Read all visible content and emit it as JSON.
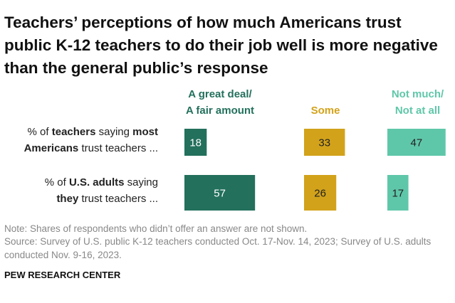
{
  "chart_data": {
    "type": "bar",
    "title": "Teachers’ perceptions of how much Americans trust public K-12 teachers to do their job well is more negative than the general public’s response",
    "categories": [
      [
        [
          {
            "text": "% of "
          },
          {
            "text": "teachers",
            "bold": true
          },
          {
            "text": " saying "
          },
          {
            "text": "most",
            "bold": true
          }
        ],
        [
          {
            "text": "Americans",
            "bold": true
          },
          {
            "text": " trust teachers ..."
          }
        ]
      ],
      [
        [
          {
            "text": "% of "
          },
          {
            "text": "U.S. adults",
            "bold": true
          },
          {
            "text": " saying"
          }
        ],
        [
          {
            "text": "they",
            "bold": true
          },
          {
            "text": " trust teachers ..."
          }
        ]
      ]
    ],
    "series": [
      {
        "name": [
          "A great deal/",
          "A fair amount"
        ],
        "color": "#23705c",
        "values": [
          18,
          57
        ]
      },
      {
        "name": [
          "Some"
        ],
        "color": "#d2a21a",
        "values": [
          33,
          26
        ]
      },
      {
        "name": [
          "Not much/",
          "Not at all"
        ],
        "color": "#5fc7a9",
        "values": [
          47,
          17
        ]
      }
    ],
    "note": "Note: Shares of respondents who didn’t offer an answer are not shown.",
    "source": "Source: Survey of U.S. public K-12 teachers conducted Oct. 17-Nov. 14, 2023; Survey of U.S. adults conducted Nov. 9-16, 2023.",
    "credit": "PEW RESEARCH CENTER"
  }
}
